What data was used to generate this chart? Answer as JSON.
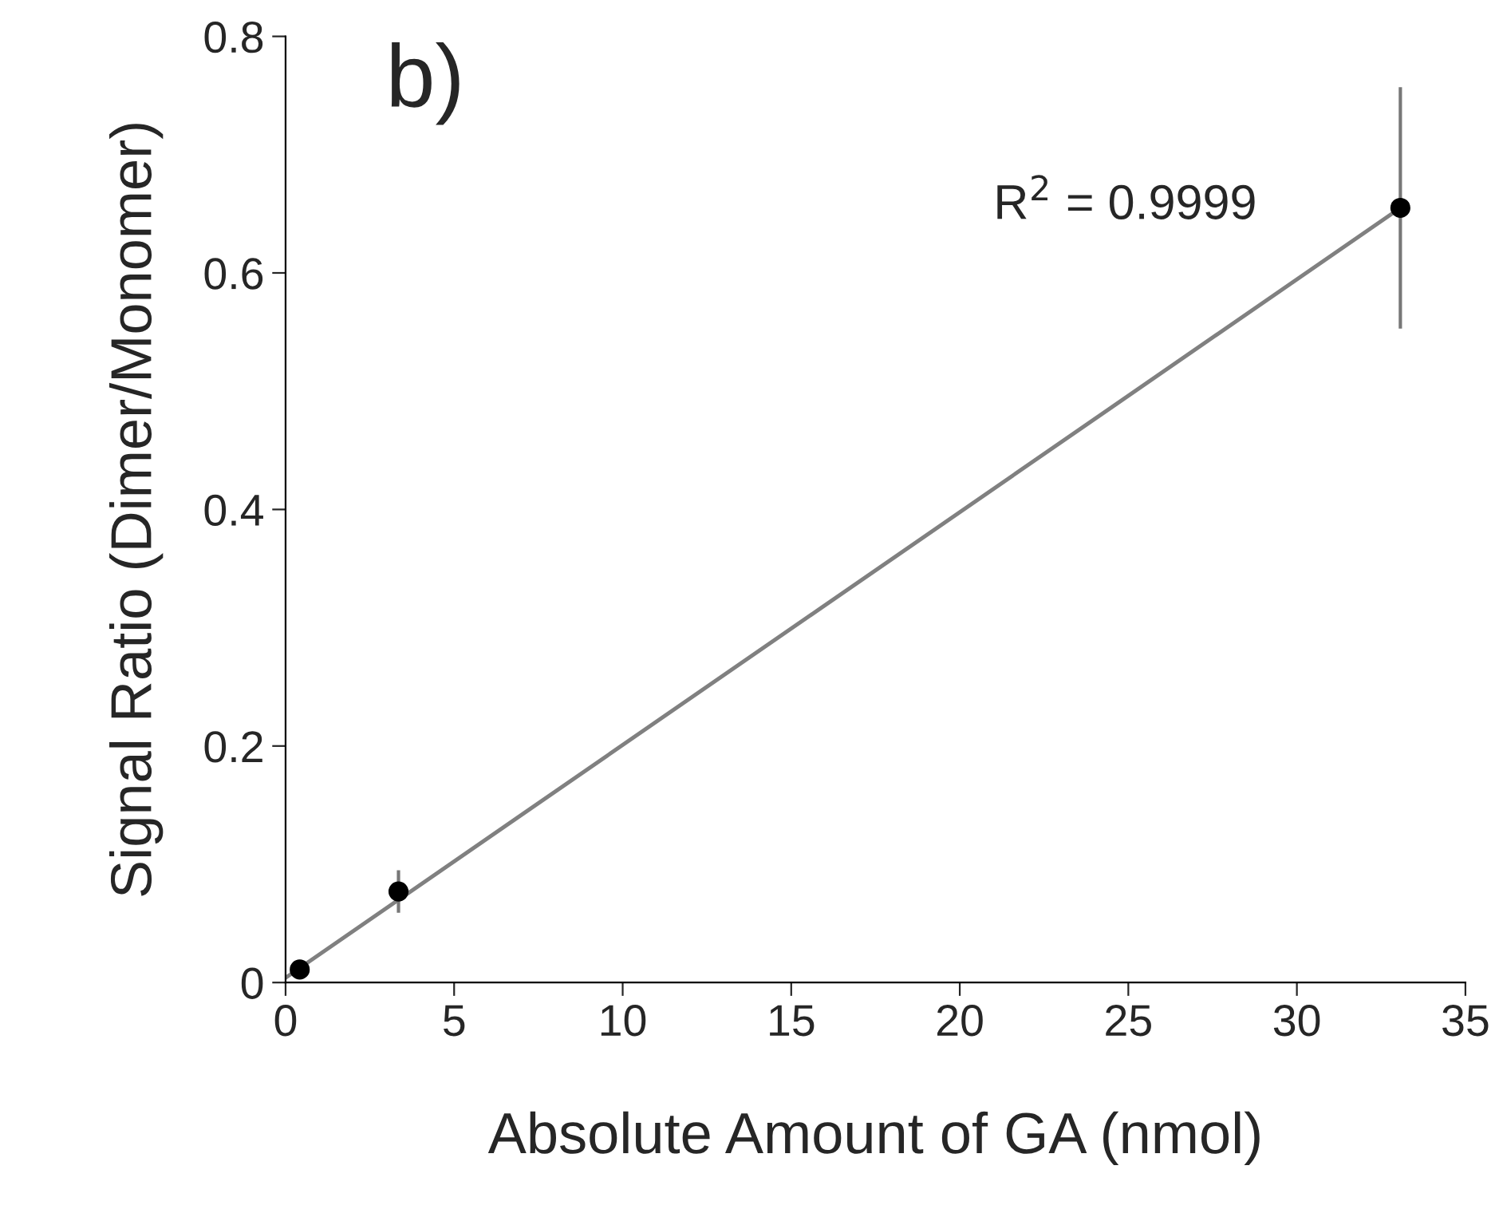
{
  "chart_data": {
    "type": "scatter",
    "xlabel": "Absolute Amount of GA (nmol)",
    "ylabel": "Signal Ratio (Dimer/Monomer)",
    "annotations": [
      "b)",
      "R$^{2}$ = 0.9999"
    ],
    "xlim": [
      0,
      35
    ],
    "xticks": [
      0,
      5,
      10,
      15,
      20,
      25,
      30,
      35
    ],
    "ylim": [
      0,
      0.8
    ],
    "yticks": [
      0,
      0.2,
      0.4,
      0.6,
      0.8
    ],
    "grid": false,
    "legend": false,
    "series": [
      {
        "type": "line",
        "color": "#808080",
        "x": [
          0,
          33.07
        ],
        "values": [
          0.004,
          0.655
        ],
        "marker": "none",
        "line_style": "solid"
      },
      {
        "color": "#000000",
        "x": [
          0.42,
          3.35,
          33.07
        ],
        "values": [
          0.011,
          0.077,
          0.655
        ],
        "errors": [
          0.005,
          0.018,
          0.102
        ],
        "marker": "circle"
      }
    ]
  }
}
